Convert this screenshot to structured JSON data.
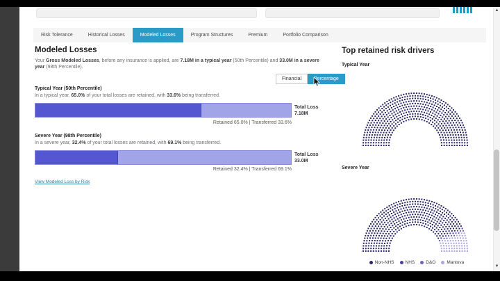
{
  "window": {
    "top_bar_color": "#000000",
    "side_strip_color": "#3b3b3b",
    "logo_icon": "teal-vertical-bars-logo",
    "logo_color": "#1d9bc9",
    "accent_color": "#2a9ac6"
  },
  "tabs": {
    "items": [
      "Risk Tolerance",
      "Historical Losses",
      "Modeled Losses",
      "Program Structures",
      "Premium",
      "Portfolio Comparison"
    ],
    "active": "Modeled Losses"
  },
  "main": {
    "title": "Modeled Losses",
    "intro": [
      {
        "t": "Your "
      },
      {
        "t": "Gross Modeled Losses",
        "b": true
      },
      {
        "t": ", before any insurance is applied, are "
      },
      {
        "t": "7.18M in a typical year",
        "b": true
      },
      {
        "t": " (50th Percentile) and "
      },
      {
        "t": "33.0M in a severe year",
        "b": true
      },
      {
        "t": " (98th Percentile)."
      }
    ],
    "toggle": {
      "financial": "Financial",
      "percentage": "Percentage",
      "active": "Percentage"
    },
    "sections": [
      {
        "title": "Typical Year (50th Percentile)",
        "desc": [
          {
            "t": "In a typical year, "
          },
          {
            "t": "65.0%",
            "b": true
          },
          {
            "t": " of your total losses are retained, with "
          },
          {
            "t": "33.6%",
            "b": true
          },
          {
            "t": " being transferred."
          }
        ],
        "total_loss_label": "Total Loss",
        "total_loss_value": "7.18M",
        "footnote": "Retained 65.0% | Transferred 33.6%"
      },
      {
        "title": "Severe Year (98th Percentile)",
        "desc": [
          {
            "t": "In a severe year, "
          },
          {
            "t": "32.4%",
            "b": true
          },
          {
            "t": " of your total losses are retained, with "
          },
          {
            "t": "69.1%",
            "b": true
          },
          {
            "t": " being transferred."
          }
        ],
        "total_loss_label": "Total Loss",
        "total_loss_value": "33.0M",
        "footnote": "Retained 32.4% | Transferred 69.1%"
      }
    ],
    "link": "View Modeled Loss by Risk",
    "colors": {
      "retained": "#5457d1",
      "transferred": "#a2a4e8"
    }
  },
  "right": {
    "title": "Top retained risk drivers",
    "chart_labels": [
      "Typical Year",
      "Severe Year"
    ],
    "legend": [
      {
        "label": "Non-NHS",
        "color": "#2b2666"
      },
      {
        "label": "NHS",
        "color": "#4c3f99"
      },
      {
        "label": "D&O",
        "color": "#6b62c4"
      },
      {
        "label": "Mantova",
        "color": "#aba6da"
      }
    ]
  },
  "chart_data": [
    {
      "type": "bar",
      "title": "Typical Year (50th Percentile)",
      "categories": [
        "Retained",
        "Transferred"
      ],
      "values": [
        65.0,
        33.6
      ],
      "unit": "%",
      "total_label": "Total Loss",
      "total_value": "7.18M"
    },
    {
      "type": "bar",
      "title": "Severe Year (98th Percentile)",
      "categories": [
        "Retained",
        "Transferred"
      ],
      "values": [
        32.4,
        69.1
      ],
      "unit": "%",
      "total_label": "Total Loss",
      "total_value": "33.0M"
    },
    {
      "type": "pie",
      "variant": "semicircle-dot-matrix",
      "title": "Typical Year",
      "segments": [
        {
          "name": "Non-NHS",
          "fraction": 1.0
        }
      ]
    },
    {
      "type": "pie",
      "variant": "semicircle-dot-matrix",
      "title": "Severe Year",
      "segments": [
        {
          "name": "Non-NHS",
          "fraction": 0.85
        },
        {
          "name": "NHS",
          "fraction": 0.01
        },
        {
          "name": "D&O",
          "fraction": 0.02
        },
        {
          "name": "Mantova",
          "fraction": 0.12
        }
      ]
    }
  ]
}
